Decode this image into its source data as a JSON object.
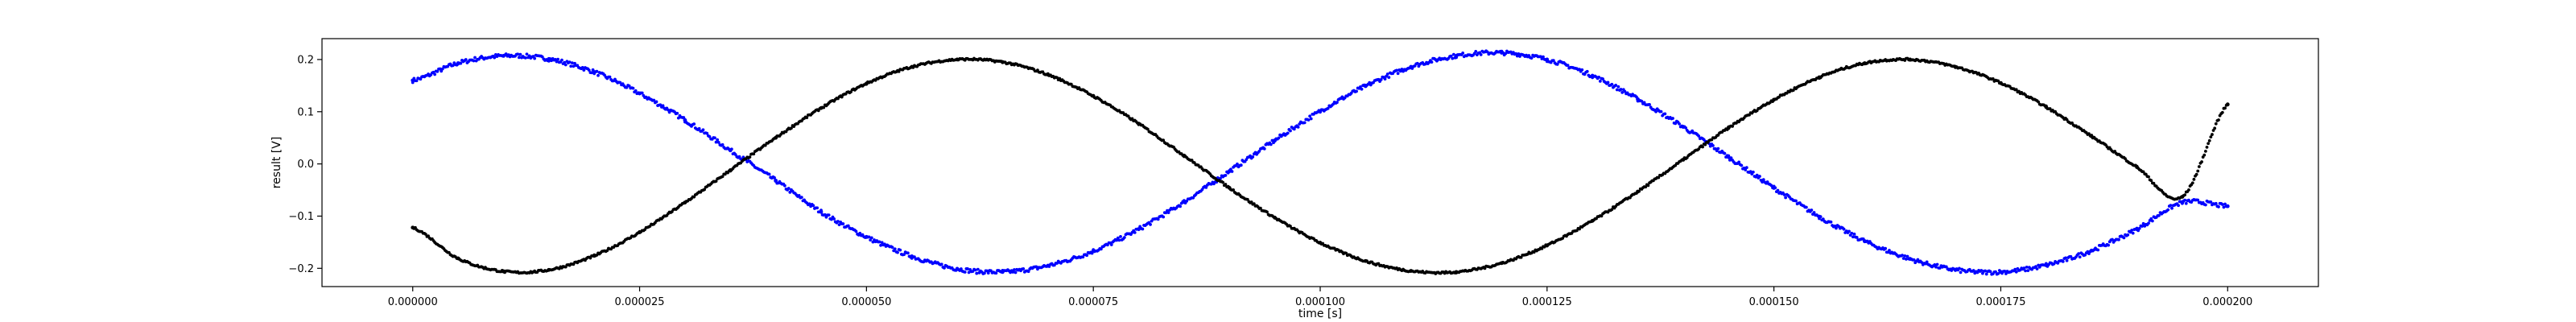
{
  "chart_data": {
    "type": "scatter",
    "xlabel": "time [s]",
    "ylabel": "result [V]",
    "xlim": [
      -1e-05,
      0.00021
    ],
    "ylim": [
      -0.235,
      0.24
    ],
    "grid": false,
    "x_ticks": [
      0.0,
      2.5e-05,
      5e-05,
      7.5e-05,
      0.0001,
      0.000125,
      0.00015,
      0.000175,
      0.0002
    ],
    "x_tick_labels": [
      "0.000000",
      "0.000025",
      "0.000050",
      "0.000075",
      "0.000100",
      "0.000125",
      "0.000150",
      "0.000175",
      "0.000200"
    ],
    "y_ticks": [
      -0.2,
      -0.1,
      0.0,
      0.1,
      0.2
    ],
    "y_tick_labels": [
      "−0.2",
      "−0.1",
      "0.0",
      "0.1",
      "0.2"
    ],
    "series": [
      {
        "color": "#0000ff",
        "marker": "dot",
        "x": [
          0.0,
          5e-06,
          1e-05,
          1.5e-05,
          2e-05,
          2.5e-05,
          3e-05,
          3.5e-05,
          4e-05,
          4.5e-05,
          5e-05,
          5.5e-05,
          6e-05,
          6.5e-05,
          7e-05,
          7.5e-05,
          8e-05,
          8.5e-05,
          9e-05,
          9.5e-05,
          0.0001,
          0.000105,
          0.00011,
          0.000115,
          0.00012,
          0.000125,
          0.00013,
          0.000135,
          0.00014,
          0.000145,
          0.00015,
          0.000155,
          0.00016,
          0.000165,
          0.00017,
          0.000175,
          0.00018,
          0.000185,
          0.00019,
          0.000195,
          0.0002
        ],
        "y": [
          0.16,
          0.193,
          0.207,
          0.201,
          0.176,
          0.135,
          0.084,
          0.026,
          -0.032,
          -0.092,
          -0.14,
          -0.177,
          -0.201,
          -0.207,
          -0.195,
          -0.167,
          -0.125,
          -0.073,
          -0.014,
          0.045,
          0.101,
          0.149,
          0.186,
          0.207,
          0.213,
          0.2,
          0.169,
          0.124,
          0.071,
          0.013,
          -0.046,
          -0.101,
          -0.148,
          -0.182,
          -0.203,
          -0.207,
          -0.194,
          -0.166,
          -0.125,
          -0.074,
          -0.081
        ]
      },
      {
        "color": "#000000",
        "marker": "dot",
        "x": [
          0.0,
          5e-06,
          1e-05,
          1.5e-05,
          2e-05,
          2.5e-05,
          3e-05,
          3.5e-05,
          4e-05,
          4.5e-05,
          5e-05,
          5.5e-05,
          6e-05,
          6.5e-05,
          7e-05,
          7.5e-05,
          8e-05,
          8.5e-05,
          9e-05,
          9.5e-05,
          0.0001,
          0.000105,
          0.00011,
          0.000115,
          0.00012,
          0.000125,
          0.00013,
          0.000135,
          0.00014,
          0.000145,
          0.00015,
          0.000155,
          0.00016,
          0.000165,
          0.00017,
          0.000175,
          0.00018,
          0.000185,
          0.00019,
          0.000195,
          0.0002
        ],
        "y": [
          -0.122,
          -0.181,
          -0.206,
          -0.203,
          -0.176,
          -0.131,
          -0.074,
          -0.012,
          0.05,
          0.107,
          0.154,
          0.186,
          0.2,
          0.195,
          0.171,
          0.13,
          0.077,
          0.016,
          -0.046,
          -0.103,
          -0.151,
          -0.186,
          -0.205,
          -0.207,
          -0.19,
          -0.156,
          -0.109,
          -0.053,
          0.008,
          0.069,
          0.123,
          0.166,
          0.193,
          0.2,
          0.186,
          0.155,
          0.109,
          0.053,
          -0.006,
          -0.063,
          0.114
        ]
      }
    ]
  }
}
